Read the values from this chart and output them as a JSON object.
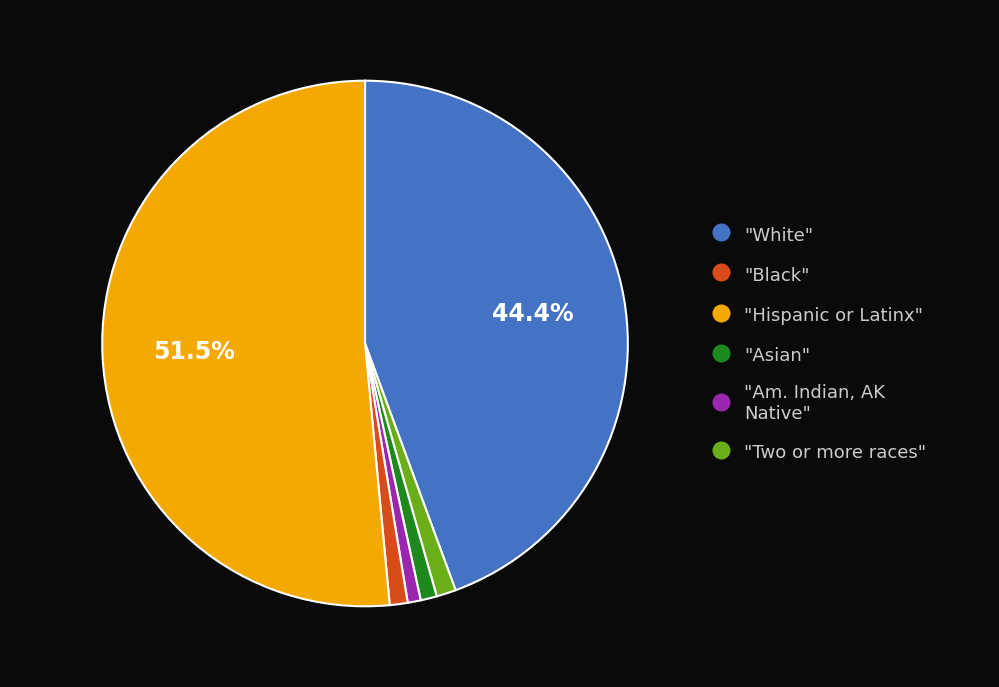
{
  "labels": [
    "\"White\"",
    "\"Black\"",
    "\"Hispanic or Latinx\"",
    "\"Asian\"",
    "\"Am. Indian, AK\nNative\"",
    "\"Two or more races\""
  ],
  "values": [
    44.4,
    1.1,
    51.5,
    1.0,
    0.8,
    1.2
  ],
  "colors": [
    "#4472C4",
    "#D94B1A",
    "#F5A800",
    "#1E8A1E",
    "#9B27AF",
    "#6AAF1A"
  ],
  "background_color": "#0a0a0a",
  "text_color": "#cccccc",
  "startangle": 90,
  "legend_fontsize": 13,
  "autopct_fontsize": 17
}
